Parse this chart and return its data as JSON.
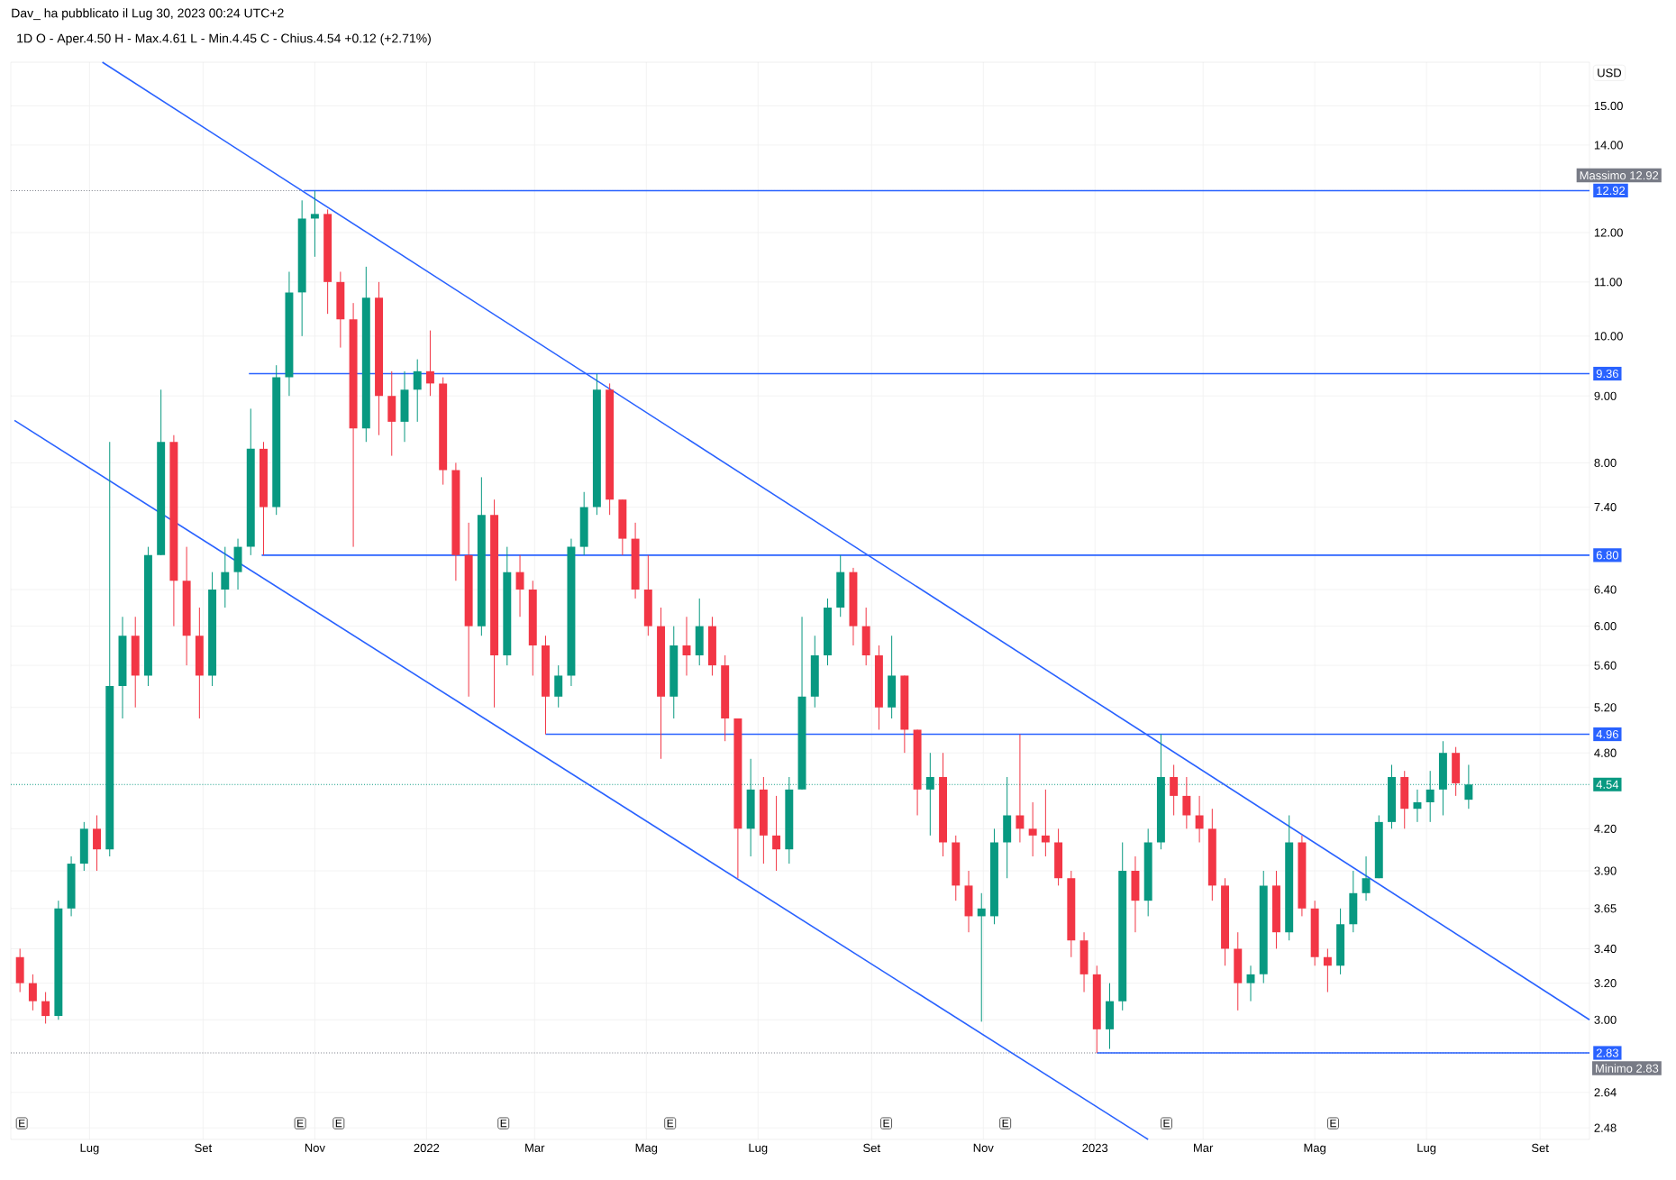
{
  "chart_data": {
    "type": "candlestick",
    "title": "Dav_ ha pubblicato il Lug 30, 2023 00:24 UTC+2",
    "subtitle": "1D  O - Aper.4.50  H - Max.4.61  L - Min.4.45  C - Chius.4.54  +0.12 (+2.71%)",
    "ylabel": "USD",
    "x": [
      "2021-05-24",
      "2021-05-31",
      "2021-06-07",
      "2021-06-14",
      "2021-06-21",
      "2021-06-28",
      "2021-07-05",
      "2021-07-12",
      "2021-07-19",
      "2021-07-26",
      "2021-08-02",
      "2021-08-09",
      "2021-08-16",
      "2021-08-23",
      "2021-08-30",
      "2021-09-06",
      "2021-09-13",
      "2021-09-20",
      "2021-09-27",
      "2021-10-04",
      "2021-10-11",
      "2021-10-18",
      "2021-10-25",
      "2021-11-01",
      "2021-11-08",
      "2021-11-15",
      "2021-11-22",
      "2021-11-29",
      "2021-12-06",
      "2021-12-13",
      "2021-12-20",
      "2021-12-27",
      "2022-01-03",
      "2022-01-10",
      "2022-01-17",
      "2022-01-24",
      "2022-01-31",
      "2022-02-07",
      "2022-02-14",
      "2022-02-21",
      "2022-02-28",
      "2022-03-07",
      "2022-03-14",
      "2022-03-21",
      "2022-03-28",
      "2022-04-04",
      "2022-04-11",
      "2022-04-18",
      "2022-04-25",
      "2022-05-02",
      "2022-05-09",
      "2022-05-16",
      "2022-05-23",
      "2022-05-30",
      "2022-06-06",
      "2022-06-13",
      "2022-06-20",
      "2022-06-27",
      "2022-07-04",
      "2022-07-11",
      "2022-07-18",
      "2022-07-25",
      "2022-08-01",
      "2022-08-08",
      "2022-08-15",
      "2022-08-22",
      "2022-08-29",
      "2022-09-05",
      "2022-09-12",
      "2022-09-19",
      "2022-09-26",
      "2022-10-03",
      "2022-10-10",
      "2022-10-17",
      "2022-10-24",
      "2022-10-31",
      "2022-11-07",
      "2022-11-14",
      "2022-11-21",
      "2022-11-28",
      "2022-12-05",
      "2022-12-12",
      "2022-12-19",
      "2022-12-26",
      "2023-01-02",
      "2023-01-09",
      "2023-01-16",
      "2023-01-23",
      "2023-01-30",
      "2023-02-06",
      "2023-02-13",
      "2023-02-20",
      "2023-02-27",
      "2023-03-06",
      "2023-03-13",
      "2023-03-20",
      "2023-03-27",
      "2023-04-03",
      "2023-04-10",
      "2023-04-17",
      "2023-04-24",
      "2023-05-01",
      "2023-05-08",
      "2023-05-15",
      "2023-05-22",
      "2023-05-29",
      "2023-06-05",
      "2023-06-12",
      "2023-06-19",
      "2023-06-26",
      "2023-07-03",
      "2023-07-10",
      "2023-07-17",
      "2023-07-24"
    ],
    "ohlc": [
      [
        3.35,
        3.4,
        3.15,
        3.2
      ],
      [
        3.2,
        3.25,
        3.05,
        3.1
      ],
      [
        3.1,
        3.15,
        2.98,
        3.02
      ],
      [
        3.02,
        3.7,
        3.0,
        3.65
      ],
      [
        3.65,
        4.0,
        3.6,
        3.95
      ],
      [
        3.95,
        4.25,
        3.9,
        4.2
      ],
      [
        4.2,
        4.3,
        3.9,
        4.05
      ],
      [
        4.05,
        8.3,
        4.0,
        5.4
      ],
      [
        5.4,
        6.1,
        5.1,
        5.9
      ],
      [
        5.9,
        6.1,
        5.2,
        5.5
      ],
      [
        5.5,
        6.9,
        5.4,
        6.8
      ],
      [
        6.8,
        9.1,
        6.8,
        8.3
      ],
      [
        8.3,
        8.4,
        6.0,
        6.5
      ],
      [
        6.5,
        6.9,
        5.6,
        5.9
      ],
      [
        5.9,
        6.2,
        5.1,
        5.5
      ],
      [
        5.5,
        6.6,
        5.4,
        6.4
      ],
      [
        6.4,
        6.9,
        6.2,
        6.6
      ],
      [
        6.6,
        7.0,
        6.4,
        6.9
      ],
      [
        6.9,
        8.8,
        6.8,
        8.2
      ],
      [
        8.2,
        8.3,
        6.8,
        7.4
      ],
      [
        7.4,
        9.5,
        7.3,
        9.3
      ],
      [
        9.3,
        11.2,
        9.0,
        10.8
      ],
      [
        10.8,
        12.7,
        10.0,
        12.3
      ],
      [
        12.3,
        12.92,
        11.5,
        12.4
      ],
      [
        12.4,
        12.5,
        10.4,
        11.0
      ],
      [
        11.0,
        11.2,
        9.8,
        10.3
      ],
      [
        10.3,
        10.6,
        6.9,
        8.5
      ],
      [
        8.5,
        11.3,
        8.3,
        10.7
      ],
      [
        10.7,
        11.0,
        8.4,
        9.0
      ],
      [
        9.0,
        9.4,
        8.1,
        8.6
      ],
      [
        8.6,
        9.4,
        8.3,
        9.1
      ],
      [
        9.1,
        9.6,
        8.6,
        9.4
      ],
      [
        9.4,
        10.1,
        9.0,
        9.2
      ],
      [
        9.2,
        9.3,
        7.7,
        7.9
      ],
      [
        7.9,
        8.0,
        6.5,
        6.8
      ],
      [
        6.8,
        7.2,
        5.3,
        6.0
      ],
      [
        6.0,
        7.8,
        5.9,
        7.3
      ],
      [
        7.3,
        7.5,
        5.2,
        5.7
      ],
      [
        5.7,
        6.9,
        5.6,
        6.6
      ],
      [
        6.6,
        6.8,
        6.1,
        6.4
      ],
      [
        6.4,
        6.5,
        5.5,
        5.8
      ],
      [
        5.8,
        5.9,
        4.96,
        5.3
      ],
      [
        5.3,
        5.6,
        5.2,
        5.5
      ],
      [
        5.5,
        7.0,
        5.4,
        6.9
      ],
      [
        6.9,
        7.6,
        6.8,
        7.4
      ],
      [
        7.4,
        9.36,
        7.3,
        9.1
      ],
      [
        9.1,
        9.2,
        7.3,
        7.5
      ],
      [
        7.5,
        7.5,
        6.8,
        7.0
      ],
      [
        7.0,
        7.2,
        6.3,
        6.4
      ],
      [
        6.4,
        6.8,
        5.9,
        6.0
      ],
      [
        6.0,
        6.2,
        4.75,
        5.3
      ],
      [
        5.3,
        6.0,
        5.1,
        5.8
      ],
      [
        5.8,
        6.1,
        5.5,
        5.7
      ],
      [
        5.7,
        6.3,
        5.6,
        6.0
      ],
      [
        6.0,
        6.1,
        5.5,
        5.6
      ],
      [
        5.6,
        5.7,
        4.9,
        5.1
      ],
      [
        5.1,
        5.1,
        3.85,
        4.2
      ],
      [
        4.2,
        4.75,
        4.0,
        4.5
      ],
      [
        4.5,
        4.6,
        3.95,
        4.15
      ],
      [
        4.15,
        4.45,
        3.9,
        4.05
      ],
      [
        4.05,
        4.6,
        3.95,
        4.5
      ],
      [
        4.5,
        6.1,
        4.5,
        5.3
      ],
      [
        5.3,
        5.9,
        5.2,
        5.7
      ],
      [
        5.7,
        6.3,
        5.6,
        6.2
      ],
      [
        6.2,
        6.8,
        6.1,
        6.6
      ],
      [
        6.6,
        6.65,
        5.8,
        6.0
      ],
      [
        6.0,
        6.2,
        5.6,
        5.7
      ],
      [
        5.7,
        5.8,
        5.0,
        5.2
      ],
      [
        5.2,
        5.9,
        5.1,
        5.5
      ],
      [
        5.5,
        5.5,
        4.8,
        5.0
      ],
      [
        5.0,
        5.0,
        4.3,
        4.5
      ],
      [
        4.5,
        4.8,
        4.15,
        4.6
      ],
      [
        4.6,
        4.8,
        4.0,
        4.1
      ],
      [
        4.1,
        4.15,
        3.7,
        3.8
      ],
      [
        3.8,
        3.9,
        3.5,
        3.6
      ],
      [
        3.6,
        3.75,
        2.99,
        3.65
      ],
      [
        3.6,
        4.2,
        3.55,
        4.1
      ],
      [
        4.1,
        4.6,
        3.85,
        4.3
      ],
      [
        4.3,
        4.96,
        4.1,
        4.2
      ],
      [
        4.2,
        4.4,
        4.0,
        4.15
      ],
      [
        4.15,
        4.5,
        4.0,
        4.1
      ],
      [
        4.1,
        4.2,
        3.8,
        3.85
      ],
      [
        3.85,
        3.9,
        3.35,
        3.45
      ],
      [
        3.45,
        3.5,
        3.15,
        3.25
      ],
      [
        3.25,
        3.3,
        2.83,
        2.95
      ],
      [
        2.95,
        3.2,
        2.85,
        3.1
      ],
      [
        3.1,
        4.1,
        3.05,
        3.9
      ],
      [
        3.9,
        4.0,
        3.5,
        3.7
      ],
      [
        3.7,
        4.2,
        3.6,
        4.1
      ],
      [
        4.1,
        4.96,
        4.05,
        4.6
      ],
      [
        4.6,
        4.7,
        4.3,
        4.45
      ],
      [
        4.45,
        4.6,
        4.2,
        4.3
      ],
      [
        4.3,
        4.45,
        4.1,
        4.2
      ],
      [
        4.2,
        4.35,
        3.7,
        3.8
      ],
      [
        3.8,
        3.85,
        3.3,
        3.4
      ],
      [
        3.4,
        3.5,
        3.05,
        3.2
      ],
      [
        3.2,
        3.3,
        3.1,
        3.25
      ],
      [
        3.25,
        3.9,
        3.2,
        3.8
      ],
      [
        3.8,
        3.9,
        3.4,
        3.5
      ],
      [
        3.5,
        4.3,
        3.45,
        4.1
      ],
      [
        4.1,
        4.15,
        3.6,
        3.65
      ],
      [
        3.65,
        3.7,
        3.3,
        3.35
      ],
      [
        3.35,
        3.4,
        3.15,
        3.3
      ],
      [
        3.3,
        3.65,
        3.25,
        3.55
      ],
      [
        3.55,
        3.9,
        3.5,
        3.75
      ],
      [
        3.75,
        4.0,
        3.7,
        3.85
      ],
      [
        3.85,
        4.3,
        3.85,
        4.25
      ],
      [
        4.25,
        4.7,
        4.2,
        4.6
      ],
      [
        4.6,
        4.65,
        4.2,
        4.35
      ],
      [
        4.35,
        4.5,
        4.25,
        4.4
      ],
      [
        4.4,
        4.65,
        4.25,
        4.5
      ],
      [
        4.5,
        4.9,
        4.3,
        4.8
      ],
      [
        4.8,
        4.85,
        4.45,
        4.55
      ],
      [
        4.42,
        4.7,
        4.35,
        4.54
      ]
    ],
    "series": [
      {
        "type": "line",
        "color": "#2962ff",
        "x": [
          "2021-07-08",
          "2023-09-28"
        ],
        "values": [
          16.2,
          3.0
        ]
      },
      {
        "type": "line",
        "color": "#2962ff",
        "x": [
          "2021-05-21",
          "2023-01-30"
        ],
        "values": [
          8.62,
          2.43
        ]
      },
      {
        "type": "line",
        "color": "#2962ff",
        "x": [
          "2021-10-26",
          "2023-09-28"
        ],
        "values": [
          12.92,
          12.92
        ],
        "value_labels": [
          null,
          "12.92"
        ]
      },
      {
        "type": "line",
        "color": "#2962ff",
        "x": [
          "2021-09-26",
          "2023-09-28"
        ],
        "values": [
          9.36,
          9.36
        ],
        "value_labels": [
          null,
          "9.36"
        ]
      },
      {
        "type": "line",
        "color": "#2962ff",
        "x": [
          "2021-10-03",
          "2023-09-28"
        ],
        "values": [
          6.8,
          6.8
        ],
        "value_labels": [
          null,
          "6.80"
        ]
      },
      {
        "type": "line",
        "color": "#2962ff",
        "x": [
          "2022-03-07",
          "2023-09-28"
        ],
        "values": [
          4.96,
          4.96
        ],
        "value_labels": [
          null,
          "4.96"
        ]
      },
      {
        "type": "line",
        "color": "#2962ff",
        "x": [
          "2023-01-02",
          "2023-09-28"
        ],
        "values": [
          2.83,
          2.83
        ],
        "value_labels": [
          null,
          "2.83"
        ]
      }
    ],
    "ref_lines": [
      {
        "axis": "y",
        "value": 12.92,
        "label": "Massimo 12.92",
        "color": "#787b86",
        "line_style": "dotted"
      },
      {
        "axis": "y",
        "value": 4.54,
        "label": "4.54",
        "color": "#089981",
        "line_style": "dotted"
      },
      {
        "axis": "y",
        "value": 2.83,
        "label": "Minimo 2.83",
        "color": "#787b86",
        "line_style": "dotted"
      }
    ],
    "annotations": [
      {
        "text": "E",
        "x": "2021-05-25"
      },
      {
        "text": "E",
        "x": "2021-10-24"
      },
      {
        "text": "E",
        "x": "2021-11-14"
      },
      {
        "text": "E",
        "x": "2022-02-12"
      },
      {
        "text": "E",
        "x": "2022-05-14"
      },
      {
        "text": "E",
        "x": "2022-09-09"
      },
      {
        "text": "E",
        "x": "2022-11-13"
      },
      {
        "text": "E",
        "x": "2023-02-09"
      },
      {
        "text": "E",
        "x": "2023-05-11"
      }
    ],
    "xlim": [
      "2021-05-19",
      "2023-09-28"
    ],
    "ylim": [
      2.43,
      16.2
    ],
    "log": true,
    "grid": true,
    "marker": "none",
    "line_style": "solid",
    "xticks": [
      {
        "value": "2021-07-01",
        "label": "Lug"
      },
      {
        "value": "2021-09-01",
        "label": "Set"
      },
      {
        "value": "2021-11-01",
        "label": "Nov"
      },
      {
        "value": "2022-01-01",
        "label": "2022"
      },
      {
        "value": "2022-03-01",
        "label": "Mar"
      },
      {
        "value": "2022-05-01",
        "label": "Mag"
      },
      {
        "value": "2022-07-01",
        "label": "Lug"
      },
      {
        "value": "2022-09-01",
        "label": "Set"
      },
      {
        "value": "2022-11-01",
        "label": "Nov"
      },
      {
        "value": "2023-01-01",
        "label": "2023"
      },
      {
        "value": "2023-03-01",
        "label": "Mar"
      },
      {
        "value": "2023-05-01",
        "label": "Mag"
      },
      {
        "value": "2023-07-01",
        "label": "Lug"
      },
      {
        "value": "2023-09-01",
        "label": "Set"
      }
    ],
    "yticks": [
      {
        "value": 2.48,
        "label": "2.48"
      },
      {
        "value": 2.64,
        "label": "2.64"
      },
      {
        "value": 3,
        "label": "3.00"
      },
      {
        "value": 3.2,
        "label": "3.20"
      },
      {
        "value": 3.4,
        "label": "3.40"
      },
      {
        "value": 3.65,
        "label": "3.65"
      },
      {
        "value": 3.9,
        "label": "3.90"
      },
      {
        "value": 4.2,
        "label": "4.20"
      },
      {
        "value": 4.8,
        "label": "4.80"
      },
      {
        "value": 5.2,
        "label": "5.20"
      },
      {
        "value": 5.6,
        "label": "5.60"
      },
      {
        "value": 6,
        "label": "6.00"
      },
      {
        "value": 6.4,
        "label": "6.40"
      },
      {
        "value": 7.4,
        "label": "7.40"
      },
      {
        "value": 8,
        "label": "8.00"
      },
      {
        "value": 9,
        "label": "9.00"
      },
      {
        "value": 10,
        "label": "10.00"
      },
      {
        "value": 11,
        "label": "11.00"
      },
      {
        "value": 12,
        "label": "12.00"
      },
      {
        "value": 14,
        "label": "14.00"
      },
      {
        "value": 15,
        "label": "15.00"
      }
    ]
  }
}
